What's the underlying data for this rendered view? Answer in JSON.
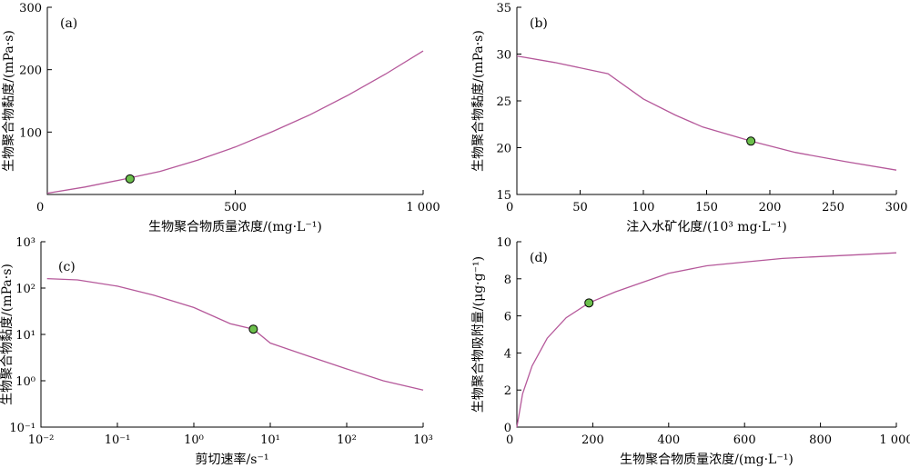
{
  "chart_data": [
    {
      "id": "a",
      "type": "line",
      "panel_label": "(a)",
      "xlabel": "生物聚合物质量浓度/(mg·L⁻¹)",
      "ylabel": "生物聚合物黏度/(mPa·s)",
      "xlim": [
        0,
        1000
      ],
      "ylim": [
        0,
        300
      ],
      "xticks": [
        0,
        500,
        1000
      ],
      "xtick_labels": [
        "0",
        "500",
        "1 000"
      ],
      "yticks": [
        100,
        200,
        300
      ],
      "ytick_labels": [
        "100",
        "200",
        "300"
      ],
      "series": [
        {
          "x": [
            0,
            100,
            200,
            300,
            400,
            500,
            600,
            700,
            800,
            900,
            1000
          ],
          "y": [
            2,
            12,
            24,
            37,
            55,
            76,
            101,
            128,
            159,
            193,
            230
          ]
        }
      ],
      "marker": {
        "x": 220,
        "y": 25
      },
      "grid": false
    },
    {
      "id": "b",
      "type": "line",
      "panel_label": "(b)",
      "xlabel": "注入水矿化度/(10³ mg·L⁻¹)",
      "ylabel": "生物聚合物黏度/(mPa·s)",
      "xlim": [
        0,
        300
      ],
      "ylim": [
        15,
        35
      ],
      "xticks": [
        0,
        50,
        100,
        150,
        200,
        250,
        300
      ],
      "xtick_labels": [
        "0",
        "50",
        "100",
        "150",
        "200",
        "250",
        "300"
      ],
      "yticks": [
        15,
        20,
        25,
        30,
        35
      ],
      "ytick_labels": [
        "15",
        "20",
        "25",
        "30",
        "35"
      ],
      "series": [
        {
          "x": [
            0,
            30,
            72,
            100,
            125,
            147,
            185,
            220,
            260,
            300
          ],
          "y": [
            29.8,
            29.1,
            27.9,
            25.2,
            23.5,
            22.2,
            20.7,
            19.5,
            18.5,
            17.6
          ]
        }
      ],
      "marker": {
        "x": 185,
        "y": 20.7
      },
      "grid": false
    },
    {
      "id": "c",
      "type": "line",
      "scale": "log-log",
      "panel_label": "(c)",
      "xlabel": "剪切速率/s⁻¹",
      "ylabel": "生物聚合物黏度/(mPa·s)",
      "xlim": [
        0.01,
        1000
      ],
      "ylim": [
        0.1,
        1000
      ],
      "xticks": [
        0.01,
        0.1,
        1,
        10,
        100,
        1000
      ],
      "xtick_labels": [
        "10⁻²",
        "10⁻¹",
        "10⁰",
        "10¹",
        "10²",
        "10³"
      ],
      "yticks": [
        0.1,
        1,
        10,
        100,
        1000
      ],
      "ytick_labels": [
        "10⁻¹",
        "10⁰",
        "10¹",
        "10²",
        "10³"
      ],
      "series": [
        {
          "x": [
            0.012,
            0.03,
            0.1,
            0.3,
            1,
            3,
            6,
            10,
            30,
            100,
            300,
            1000
          ],
          "y": [
            160,
            150,
            110,
            70,
            38,
            17,
            13,
            6.5,
            3.5,
            1.8,
            1.0,
            0.63
          ]
        }
      ],
      "marker": {
        "x": 6,
        "y": 13
      },
      "grid": false
    },
    {
      "id": "d",
      "type": "line",
      "panel_label": "(d)",
      "xlabel": "生物聚合物质量浓度/(mg·L⁻¹)",
      "ylabel": "生物聚合物吸附量/(μg·g⁻¹)",
      "xlim": [
        0,
        1000
      ],
      "ylim": [
        0,
        10
      ],
      "xticks": [
        0,
        200,
        400,
        600,
        800,
        1000
      ],
      "xtick_labels": [
        "0",
        "200",
        "400",
        "600",
        "800",
        "1 000"
      ],
      "yticks": [
        0,
        2,
        4,
        6,
        8,
        10
      ],
      "ytick_labels": [
        "0",
        "2",
        "4",
        "6",
        "8",
        "10"
      ],
      "series": [
        {
          "x": [
            0,
            15,
            40,
            80,
            130,
            190,
            260,
            330,
            400,
            500,
            600,
            700,
            800,
            900,
            1000
          ],
          "y": [
            0,
            1.8,
            3.3,
            4.8,
            5.9,
            6.7,
            7.3,
            7.8,
            8.3,
            8.7,
            8.9,
            9.1,
            9.2,
            9.3,
            9.4
          ]
        }
      ],
      "marker": {
        "x": 190,
        "y": 6.7
      },
      "grid": false
    }
  ]
}
